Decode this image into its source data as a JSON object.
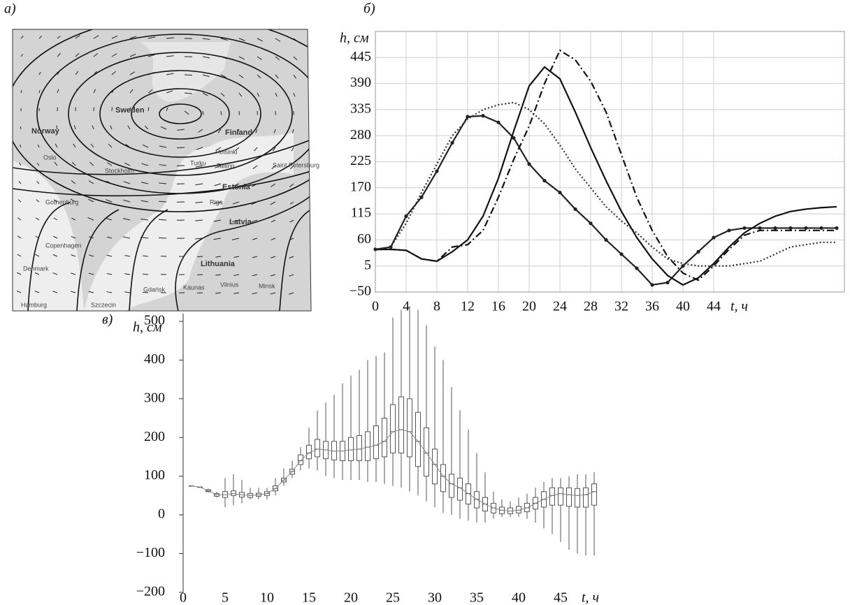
{
  "map": {
    "panel_label": "а)",
    "labels": [
      "Sweden",
      "Finland",
      "Norway",
      "Estonia",
      "Latvia",
      "Lithuania",
      "Riga",
      "Oslo",
      "Stockholm",
      "Tallinn",
      "Turku",
      "Helsinki",
      "Saint Petersburg",
      "Gothenburg",
      "Copenhagen",
      "Denmark",
      "Gdańsk",
      "Kaunas",
      "Vilnius",
      "Minsk",
      "Hamburg",
      "Szczecin"
    ]
  },
  "chart_data": [
    {
      "type": "line",
      "panel_label": "б)",
      "y_label": "h, см",
      "x_label": "t, ч",
      "x": [
        0,
        2,
        4,
        6,
        8,
        10,
        12,
        14,
        16,
        18,
        20,
        22,
        24,
        26,
        28,
        30,
        32,
        34,
        36,
        38,
        40,
        42,
        44,
        46,
        48,
        50,
        52,
        54,
        56,
        58,
        60
      ],
      "series": [
        {
          "color": "#222222",
          "dash": "solid",
          "marker": "circle",
          "values": [
            40,
            45,
            110,
            150,
            205,
            265,
            320,
            322,
            308,
            275,
            220,
            185,
            160,
            125,
            95,
            60,
            30,
            0,
            -35,
            -30,
            5,
            35,
            65,
            80,
            85,
            85,
            85,
            85,
            85,
            85,
            85
          ]
        },
        {
          "color": "#111111",
          "dash": "solid",
          "marker": "none",
          "values": [
            40,
            40,
            38,
            20,
            15,
            35,
            60,
            110,
            190,
            290,
            385,
            425,
            400,
            330,
            255,
            185,
            120,
            65,
            20,
            -15,
            -35,
            -20,
            10,
            45,
            75,
            95,
            110,
            120,
            125,
            128,
            130
          ]
        },
        {
          "color": "#111111",
          "dash": "dashdot",
          "marker": "none",
          "values": [
            40,
            40,
            38,
            20,
            15,
            45,
            50,
            80,
            150,
            230,
            300,
            390,
            460,
            440,
            395,
            330,
            240,
            150,
            80,
            25,
            -10,
            -25,
            5,
            40,
            70,
            80,
            80,
            80,
            80,
            80,
            80
          ]
        },
        {
          "color": "#333333",
          "dash": "dotted",
          "marker": "none",
          "values": [
            40,
            45,
            95,
            160,
            220,
            280,
            315,
            335,
            345,
            350,
            335,
            305,
            260,
            210,
            170,
            130,
            100,
            75,
            45,
            20,
            10,
            5,
            5,
            5,
            10,
            15,
            30,
            45,
            50,
            55,
            55
          ]
        }
      ],
      "xlim": [
        0,
        61
      ],
      "ylim": [
        -50,
        500
      ],
      "xticks": [
        0,
        4,
        8,
        12,
        16,
        20,
        24,
        28,
        32,
        36,
        40,
        44
      ],
      "yticks": [
        {
          "value": -50,
          "label": "−50"
        },
        5,
        60,
        115,
        170,
        225,
        280,
        335,
        390,
        445
      ],
      "grid": true
    },
    {
      "type": "box",
      "panel_label": "в)",
      "y_label": "h, см",
      "x_label": "t, ч",
      "color": "#555555",
      "x": [
        1,
        2,
        3,
        4,
        5,
        6,
        7,
        8,
        9,
        10,
        11,
        12,
        13,
        14,
        15,
        16,
        17,
        18,
        19,
        20,
        21,
        22,
        23,
        24,
        25,
        26,
        27,
        28,
        29,
        30,
        31,
        32,
        33,
        34,
        35,
        36,
        37,
        38,
        39,
        40,
        41,
        42,
        43,
        44,
        45,
        46,
        47,
        48,
        49
      ],
      "min": [
        75,
        72,
        58,
        45,
        20,
        25,
        30,
        40,
        40,
        40,
        50,
        75,
        95,
        115,
        120,
        115,
        100,
        95,
        90,
        90,
        90,
        85,
        85,
        80,
        75,
        70,
        60,
        50,
        35,
        20,
        5,
        0,
        -10,
        -15,
        -20,
        -20,
        -10,
        -5,
        -5,
        -5,
        -10,
        -20,
        -35,
        -50,
        -70,
        -90,
        -100,
        -105,
        -105
      ],
      "q1": [
        75,
        72,
        60,
        48,
        45,
        50,
        46,
        45,
        48,
        50,
        62,
        85,
        105,
        130,
        145,
        150,
        145,
        142,
        140,
        140,
        140,
        140,
        145,
        150,
        160,
        160,
        150,
        125,
        100,
        80,
        60,
        45,
        38,
        28,
        18,
        10,
        5,
        3,
        3,
        5,
        8,
        15,
        20,
        25,
        25,
        22,
        20,
        20,
        25
      ],
      "median": [
        75,
        72,
        62,
        52,
        52,
        55,
        52,
        50,
        52,
        55,
        68,
        90,
        112,
        140,
        160,
        170,
        168,
        165,
        165,
        168,
        170,
        175,
        180,
        190,
        215,
        220,
        215,
        190,
        160,
        130,
        100,
        80,
        70,
        55,
        40,
        28,
        18,
        12,
        10,
        12,
        18,
        30,
        40,
        50,
        55,
        52,
        50,
        52,
        60
      ],
      "q3": [
        75,
        72,
        65,
        55,
        60,
        62,
        58,
        55,
        56,
        60,
        75,
        95,
        118,
        155,
        180,
        195,
        190,
        190,
        190,
        200,
        205,
        215,
        230,
        250,
        285,
        305,
        300,
        265,
        225,
        170,
        130,
        105,
        95,
        80,
        60,
        45,
        30,
        20,
        18,
        22,
        30,
        45,
        60,
        70,
        70,
        70,
        68,
        70,
        80
      ],
      "max": [
        75,
        72,
        68,
        60,
        95,
        105,
        90,
        70,
        70,
        70,
        95,
        120,
        140,
        175,
        225,
        270,
        290,
        310,
        340,
        360,
        375,
        400,
        410,
        420,
        510,
        530,
        540,
        530,
        490,
        435,
        400,
        330,
        270,
        220,
        160,
        110,
        60,
        40,
        35,
        45,
        55,
        70,
        85,
        95,
        95,
        100,
        105,
        105,
        110
      ],
      "xlim": [
        0,
        50
      ],
      "ylim": [
        -200,
        520
      ],
      "xticks": [
        0,
        5,
        10,
        15,
        20,
        25,
        30,
        35,
        40,
        45
      ],
      "yticks": [
        {
          "value": -200,
          "label": "−200"
        },
        {
          "value": -100,
          "label": "−100"
        },
        0,
        100,
        200,
        300,
        400,
        500
      ]
    }
  ]
}
